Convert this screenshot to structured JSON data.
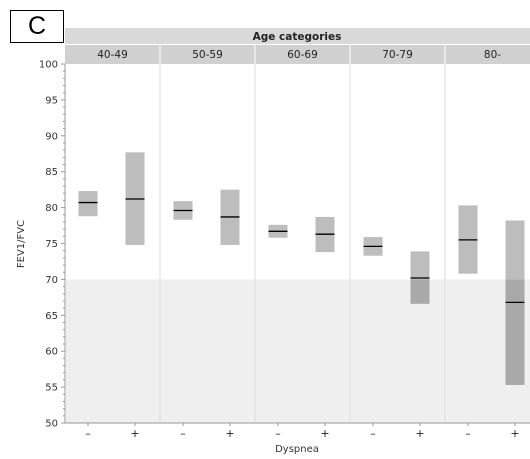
{
  "panel_label": "C",
  "chart_data": {
    "type": "box",
    "facet_title": "Age categories",
    "facets": [
      "40-49",
      "50-59",
      "60-69",
      "70-79",
      "80-"
    ],
    "groups": [
      "–",
      "+"
    ],
    "xlabel": "Dyspnea",
    "ylabel": "FEV1/FVC",
    "ylim": [
      50,
      100
    ],
    "yticks": [
      50,
      55,
      60,
      65,
      70,
      75,
      80,
      85,
      90,
      95,
      100
    ],
    "threshold": 70,
    "colors": {
      "box": "#bdbdbd",
      "box_below_threshold": "#a8a8a8",
      "median": "#000000",
      "shade": "#efefef",
      "facet_divider": "#dddddd",
      "minus_sign": "#333333",
      "plus_sign": "#c0392b"
    },
    "series": [
      {
        "facet": "40-49",
        "group": "–",
        "low": 78.8,
        "median": 80.7,
        "high": 82.3
      },
      {
        "facet": "40-49",
        "group": "+",
        "low": 74.8,
        "median": 81.2,
        "high": 87.7
      },
      {
        "facet": "50-59",
        "group": "–",
        "low": 78.3,
        "median": 79.6,
        "high": 80.9
      },
      {
        "facet": "50-59",
        "group": "+",
        "low": 74.8,
        "median": 78.7,
        "high": 82.5
      },
      {
        "facet": "60-69",
        "group": "–",
        "low": 75.8,
        "median": 76.7,
        "high": 77.6
      },
      {
        "facet": "60-69",
        "group": "+",
        "low": 73.8,
        "median": 76.3,
        "high": 78.7
      },
      {
        "facet": "70-79",
        "group": "–",
        "low": 73.3,
        "median": 74.6,
        "high": 75.9
      },
      {
        "facet": "70-79",
        "group": "+",
        "low": 66.6,
        "median": 70.2,
        "high": 73.9
      },
      {
        "facet": "80-",
        "group": "–",
        "low": 70.8,
        "median": 75.5,
        "high": 80.3
      },
      {
        "facet": "80-",
        "group": "+",
        "low": 55.3,
        "median": 66.8,
        "high": 78.2
      }
    ]
  }
}
